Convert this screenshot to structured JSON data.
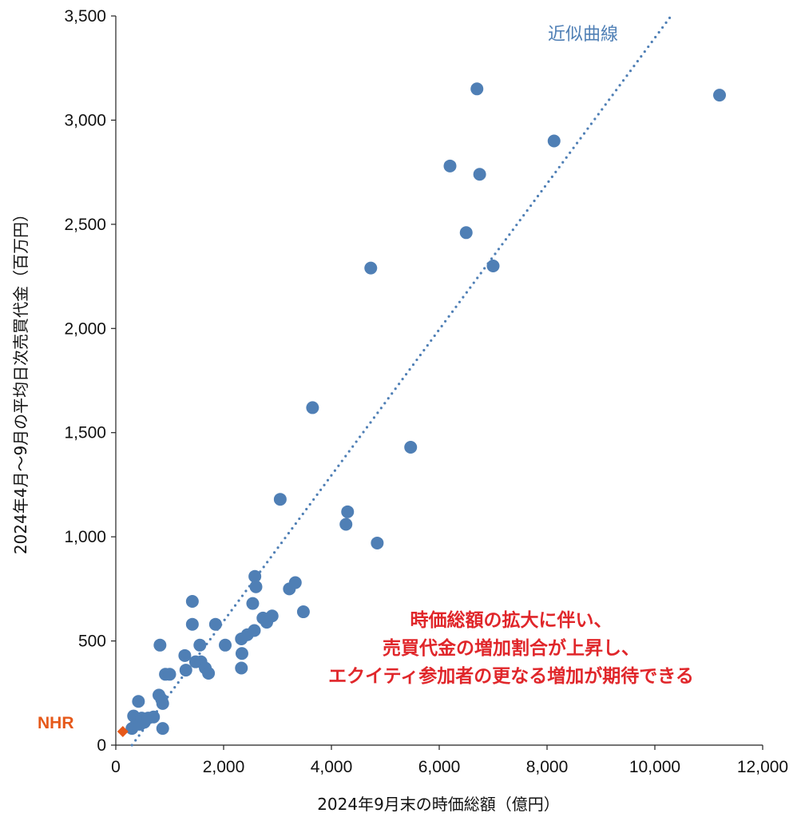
{
  "chart_data": {
    "type": "scatter",
    "xlabel": "2024年9月末の時価総額（億円）",
    "ylabel": "2024年4月～9月の平均日次売買代金（百万円）",
    "xlim": [
      0,
      12000
    ],
    "ylim": [
      0,
      3500
    ],
    "xticks": [
      "0",
      "2,000",
      "4,000",
      "6,000",
      "8,000",
      "10,000",
      "12,000"
    ],
    "yticks": [
      "0",
      "500",
      "1,000",
      "1,500",
      "2,000",
      "2,500",
      "3,000",
      "3,500"
    ],
    "grid": false,
    "series": [
      {
        "color": "#4f7fb5",
        "marker": "circle",
        "points": [
          [
            300,
            80
          ],
          [
            330,
            140
          ],
          [
            380,
            100
          ],
          [
            420,
            210
          ],
          [
            450,
            100
          ],
          [
            480,
            130
          ],
          [
            530,
            110
          ],
          [
            600,
            130
          ],
          [
            700,
            135
          ],
          [
            800,
            240
          ],
          [
            820,
            480
          ],
          [
            850,
            220
          ],
          [
            870,
            200
          ],
          [
            870,
            80
          ],
          [
            920,
            340
          ],
          [
            1000,
            340
          ],
          [
            1280,
            430
          ],
          [
            1300,
            360
          ],
          [
            1420,
            690
          ],
          [
            1420,
            580
          ],
          [
            1480,
            400
          ],
          [
            1560,
            480
          ],
          [
            1580,
            400
          ],
          [
            1660,
            370
          ],
          [
            1720,
            345
          ],
          [
            1850,
            580
          ],
          [
            2030,
            480
          ],
          [
            2330,
            510
          ],
          [
            2330,
            370
          ],
          [
            2340,
            440
          ],
          [
            2440,
            530
          ],
          [
            2540,
            680
          ],
          [
            2570,
            550
          ],
          [
            2580,
            810
          ],
          [
            2600,
            760
          ],
          [
            2730,
            610
          ],
          [
            2800,
            590
          ],
          [
            2900,
            620
          ],
          [
            3050,
            1180
          ],
          [
            3220,
            750
          ],
          [
            3330,
            780
          ],
          [
            3480,
            640
          ],
          [
            3650,
            1620
          ],
          [
            4270,
            1060
          ],
          [
            4300,
            1120
          ],
          [
            4730,
            2290
          ],
          [
            4850,
            970
          ],
          [
            5470,
            1430
          ],
          [
            6200,
            2780
          ],
          [
            6500,
            2460
          ],
          [
            6700,
            3150
          ],
          [
            6750,
            2740
          ],
          [
            7000,
            2300
          ],
          [
            8130,
            2900
          ],
          [
            11200,
            3120
          ]
        ]
      },
      {
        "name": "NHR",
        "color": "#e6591a",
        "marker": "diamond",
        "points": [
          [
            130,
            65
          ]
        ]
      }
    ],
    "trendline": {
      "label": "近似曲線",
      "color": "#4f7fb5",
      "style": "dotted",
      "x1": 300,
      "y1": 0,
      "x2": 10300,
      "y2": 3500
    },
    "annotation": {
      "lines": [
        "時価総額の拡大に伴い、",
        "売買代金の増加割合が上昇し、",
        "エクイティ参加者の更なる増加が期待できる"
      ],
      "color": "#e0262a"
    }
  }
}
